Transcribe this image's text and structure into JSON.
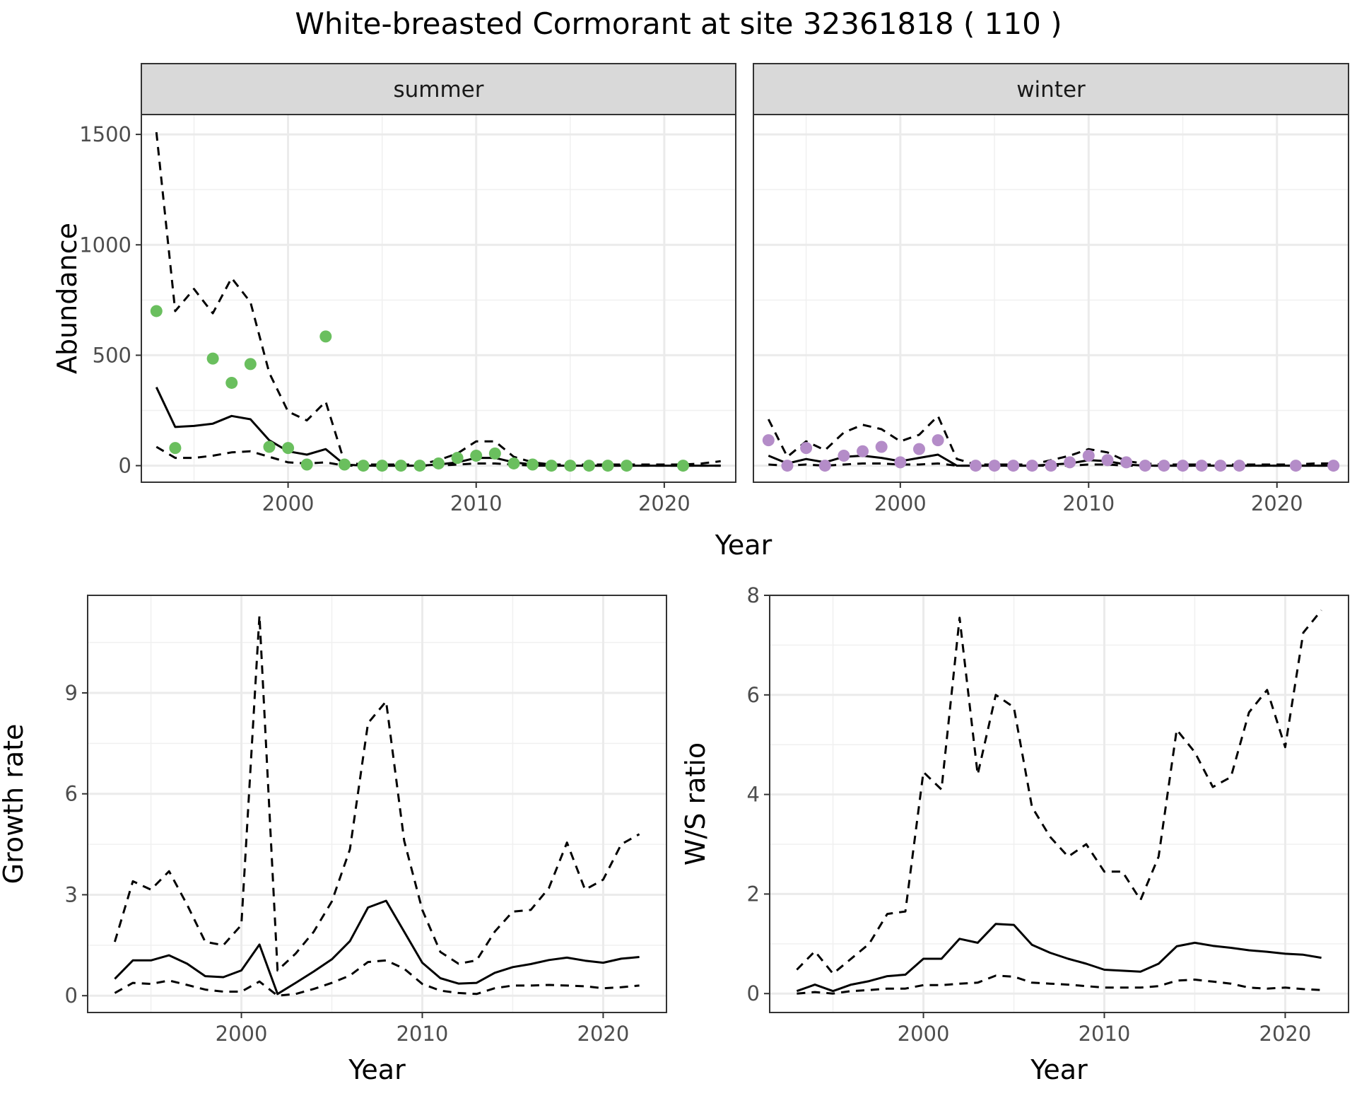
{
  "title": "White-breasted Cormorant at site 32361818 ( 110 )",
  "colors": {
    "summer": "#6abf5e",
    "winter": "#b48cc8",
    "line": "#000000",
    "strip": "#d9d9d9"
  },
  "chart_data": [
    {
      "type": "line",
      "facet": "summer",
      "xlabel": "Year",
      "ylabel": "Abundance",
      "xlim": [
        1992.2,
        2023.8
      ],
      "ylim": [
        -75,
        1590
      ],
      "xticks": [
        2000,
        2010,
        2020
      ],
      "yticks": [
        0,
        500,
        1000,
        1500
      ],
      "series": [
        {
          "style": "solid",
          "x": [
            1993,
            1994,
            1995,
            1996,
            1997,
            1998,
            1999,
            2000,
            2001,
            2002,
            2003,
            2004,
            2005,
            2006,
            2007,
            2008,
            2009,
            2010,
            2011,
            2012,
            2013,
            2014,
            2015,
            2016,
            2017,
            2018,
            2019,
            2020,
            2021,
            2022,
            2023
          ],
          "y": [
            355,
            175,
            180,
            190,
            225,
            210,
            115,
            65,
            50,
            75,
            5,
            0,
            0,
            0,
            0,
            5,
            15,
            35,
            35,
            15,
            5,
            0,
            0,
            0,
            0,
            0,
            0,
            0,
            0,
            0,
            0
          ]
        },
        {
          "style": "dashed",
          "x": [
            1993,
            1994,
            1995,
            1996,
            1997,
            1998,
            1999,
            2000,
            2001,
            2002,
            2003,
            2004,
            2005,
            2006,
            2007,
            2008,
            2009,
            2010,
            2011,
            2012,
            2013,
            2014,
            2015,
            2016,
            2017,
            2018,
            2019,
            2020,
            2021,
            2022,
            2023
          ],
          "y": [
            1510,
            700,
            800,
            690,
            850,
            740,
            420,
            245,
            205,
            290,
            15,
            5,
            5,
            5,
            5,
            25,
            55,
            110,
            110,
            40,
            15,
            5,
            5,
            5,
            5,
            5,
            5,
            5,
            5,
            10,
            20
          ]
        },
        {
          "style": "dashed",
          "x": [
            1993,
            1994,
            1995,
            1996,
            1997,
            1998,
            1999,
            2000,
            2001,
            2002,
            2003,
            2004,
            2005,
            2006,
            2007,
            2008,
            2009,
            2010,
            2011,
            2012,
            2013,
            2014,
            2015,
            2016,
            2017,
            2018,
            2019,
            2020,
            2021,
            2022,
            2023
          ],
          "y": [
            85,
            35,
            35,
            45,
            60,
            65,
            40,
            15,
            10,
            15,
            0,
            0,
            0,
            0,
            0,
            0,
            5,
            10,
            10,
            5,
            0,
            0,
            0,
            0,
            0,
            0,
            0,
            0,
            0,
            0,
            0
          ]
        },
        {
          "style": "points",
          "x": [
            1993,
            1994,
            1996,
            1997,
            1998,
            1999,
            2000,
            2001,
            2002,
            2003,
            2004,
            2005,
            2006,
            2007,
            2008,
            2009,
            2010,
            2011,
            2012,
            2013,
            2014,
            2015,
            2016,
            2017,
            2018,
            2021
          ],
          "y": [
            700,
            80,
            485,
            375,
            460,
            85,
            80,
            5,
            585,
            5,
            0,
            0,
            0,
            0,
            10,
            35,
            45,
            55,
            10,
            5,
            0,
            0,
            0,
            0,
            0,
            0
          ]
        }
      ]
    },
    {
      "type": "line",
      "facet": "winter",
      "xlabel": "Year",
      "ylabel": "Abundance",
      "xlim": [
        1992.2,
        2023.8
      ],
      "ylim": [
        -75,
        1590
      ],
      "xticks": [
        2000,
        2010,
        2020
      ],
      "yticks": [
        0,
        500,
        1000,
        1500
      ],
      "series": [
        {
          "style": "solid",
          "x": [
            1993,
            1994,
            1995,
            1996,
            1997,
            1998,
            1999,
            2000,
            2001,
            2002,
            2003,
            2004,
            2005,
            2006,
            2007,
            2008,
            2009,
            2010,
            2011,
            2012,
            2013,
            2014,
            2015,
            2016,
            2017,
            2018,
            2019,
            2020,
            2021,
            2022,
            2023
          ],
          "y": [
            45,
            10,
            30,
            15,
            40,
            45,
            35,
            20,
            35,
            50,
            0,
            0,
            0,
            0,
            0,
            5,
            10,
            25,
            20,
            5,
            0,
            0,
            0,
            0,
            0,
            0,
            0,
            0,
            0,
            0,
            0
          ]
        },
        {
          "style": "dashed",
          "x": [
            1993,
            1994,
            1995,
            1996,
            1997,
            1998,
            1999,
            2000,
            2001,
            2002,
            2003,
            2004,
            2005,
            2006,
            2007,
            2008,
            2009,
            2010,
            2011,
            2012,
            2013,
            2014,
            2015,
            2016,
            2017,
            2018,
            2019,
            2020,
            2021,
            2022,
            2023
          ],
          "y": [
            210,
            40,
            110,
            70,
            150,
            185,
            165,
            110,
            140,
            225,
            30,
            5,
            5,
            5,
            5,
            25,
            45,
            75,
            60,
            20,
            10,
            5,
            5,
            5,
            5,
            5,
            5,
            5,
            5,
            10,
            10
          ]
        },
        {
          "style": "dashed",
          "x": [
            1993,
            1994,
            1995,
            1996,
            1997,
            1998,
            1999,
            2000,
            2001,
            2002,
            2003,
            2004,
            2005,
            2006,
            2007,
            2008,
            2009,
            2010,
            2011,
            2012,
            2013,
            2014,
            2015,
            2016,
            2017,
            2018,
            2019,
            2020,
            2021,
            2022,
            2023
          ],
          "y": [
            5,
            0,
            5,
            0,
            5,
            10,
            10,
            5,
            5,
            10,
            0,
            0,
            0,
            0,
            0,
            0,
            0,
            5,
            5,
            0,
            0,
            0,
            0,
            0,
            0,
            0,
            0,
            0,
            0,
            0,
            0
          ]
        },
        {
          "style": "points",
          "x": [
            1993,
            1994,
            1995,
            1996,
            1997,
            1998,
            1999,
            2000,
            2001,
            2002,
            2004,
            2005,
            2006,
            2007,
            2008,
            2009,
            2010,
            2011,
            2012,
            2013,
            2014,
            2015,
            2016,
            2017,
            2018,
            2021,
            2023
          ],
          "y": [
            115,
            0,
            80,
            0,
            45,
            65,
            85,
            15,
            75,
            115,
            0,
            0,
            0,
            0,
            0,
            15,
            45,
            25,
            15,
            0,
            0,
            0,
            0,
            0,
            0,
            0,
            0
          ]
        }
      ]
    },
    {
      "type": "line",
      "xlabel": "Year",
      "ylabel": "Growth rate",
      "xlim": [
        1991.5,
        2023.5
      ],
      "ylim": [
        -0.5,
        11.9
      ],
      "xticks": [
        2000,
        2010,
        2020
      ],
      "yticks": [
        0,
        3,
        6,
        9
      ],
      "series": [
        {
          "style": "solid",
          "x": [
            1993,
            1994,
            1995,
            1996,
            1997,
            1998,
            1999,
            2000,
            2001,
            2002,
            2003,
            2004,
            2005,
            2006,
            2007,
            2008,
            2009,
            2010,
            2011,
            2012,
            2013,
            2014,
            2015,
            2016,
            2017,
            2018,
            2019,
            2020,
            2021,
            2022
          ],
          "y": [
            0.5,
            1.05,
            1.05,
            1.2,
            0.95,
            0.58,
            0.55,
            0.75,
            1.52,
            0.05,
            0.38,
            0.72,
            1.08,
            1.62,
            2.62,
            2.82,
            1.9,
            0.98,
            0.52,
            0.36,
            0.38,
            0.68,
            0.85,
            0.94,
            1.06,
            1.13,
            1.04,
            0.98,
            1.1,
            1.15
          ]
        },
        {
          "style": "dashed",
          "x": [
            1993,
            1994,
            1995,
            1996,
            1997,
            1998,
            1999,
            2000,
            2001,
            2002,
            2003,
            2004,
            2005,
            2006,
            2007,
            2008,
            2009,
            2010,
            2011,
            2012,
            2013,
            2014,
            2015,
            2016,
            2017,
            2018,
            2019,
            2020,
            2021,
            2022
          ],
          "y": [
            1.6,
            3.4,
            3.15,
            3.7,
            2.7,
            1.6,
            1.5,
            2.1,
            11.3,
            0.75,
            1.25,
            1.9,
            2.8,
            4.35,
            8.1,
            8.75,
            4.6,
            2.55,
            1.3,
            0.95,
            1.05,
            1.9,
            2.5,
            2.55,
            3.2,
            4.55,
            3.15,
            3.45,
            4.5,
            4.8
          ]
        },
        {
          "style": "dashed",
          "x": [
            1993,
            1994,
            1995,
            1996,
            1997,
            1998,
            1999,
            2000,
            2001,
            2002,
            2003,
            2004,
            2005,
            2006,
            2007,
            2008,
            2009,
            2010,
            2011,
            2012,
            2013,
            2014,
            2015,
            2016,
            2017,
            2018,
            2019,
            2020,
            2021,
            2022
          ],
          "y": [
            0.08,
            0.38,
            0.35,
            0.45,
            0.32,
            0.18,
            0.12,
            0.12,
            0.42,
            0.0,
            0.05,
            0.2,
            0.38,
            0.6,
            1.0,
            1.05,
            0.8,
            0.35,
            0.15,
            0.08,
            0.05,
            0.22,
            0.3,
            0.3,
            0.32,
            0.3,
            0.28,
            0.22,
            0.25,
            0.3
          ]
        }
      ]
    },
    {
      "type": "line",
      "xlabel": "Year",
      "ylabel": "W/S ratio",
      "xlim": [
        1991.5,
        2023.5
      ],
      "ylim": [
        -0.38,
        8.0
      ],
      "xticks": [
        2000,
        2010,
        2020
      ],
      "yticks": [
        0,
        2,
        4,
        6,
        8
      ],
      "series": [
        {
          "style": "solid",
          "x": [
            1993,
            1994,
            1995,
            1996,
            1997,
            1998,
            1999,
            2000,
            2001,
            2002,
            2003,
            2004,
            2005,
            2006,
            2007,
            2008,
            2009,
            2010,
            2011,
            2012,
            2013,
            2014,
            2015,
            2016,
            2017,
            2018,
            2019,
            2020,
            2021,
            2022
          ],
          "y": [
            0.05,
            0.18,
            0.05,
            0.18,
            0.25,
            0.35,
            0.38,
            0.7,
            0.7,
            1.1,
            1.02,
            1.4,
            1.38,
            0.98,
            0.82,
            0.7,
            0.6,
            0.48,
            0.46,
            0.44,
            0.6,
            0.95,
            1.02,
            0.96,
            0.92,
            0.87,
            0.84,
            0.8,
            0.78,
            0.72
          ]
        },
        {
          "style": "dashed",
          "x": [
            1993,
            1994,
            1995,
            1996,
            1997,
            1998,
            1999,
            2000,
            2001,
            2002,
            2003,
            2004,
            2005,
            2006,
            2007,
            2008,
            2009,
            2010,
            2011,
            2012,
            2013,
            2014,
            2015,
            2016,
            2017,
            2018,
            2019,
            2020,
            2021,
            2022
          ],
          "y": [
            0.48,
            0.85,
            0.4,
            0.7,
            1.0,
            1.6,
            1.65,
            4.45,
            4.1,
            7.55,
            4.4,
            6.0,
            5.75,
            3.75,
            3.15,
            2.75,
            3.0,
            2.45,
            2.45,
            1.88,
            2.75,
            5.3,
            4.85,
            4.15,
            4.35,
            5.65,
            6.1,
            4.95,
            7.25,
            7.7
          ]
        },
        {
          "style": "dashed",
          "x": [
            1993,
            1994,
            1995,
            1996,
            1997,
            1998,
            1999,
            2000,
            2001,
            2002,
            2003,
            2004,
            2005,
            2006,
            2007,
            2008,
            2009,
            2010,
            2011,
            2012,
            2013,
            2014,
            2015,
            2016,
            2017,
            2018,
            2019,
            2020,
            2021,
            2022
          ],
          "y": [
            0.0,
            0.03,
            0.0,
            0.05,
            0.07,
            0.1,
            0.1,
            0.17,
            0.17,
            0.2,
            0.22,
            0.36,
            0.34,
            0.22,
            0.2,
            0.18,
            0.15,
            0.12,
            0.12,
            0.12,
            0.15,
            0.26,
            0.28,
            0.24,
            0.2,
            0.12,
            0.1,
            0.12,
            0.09,
            0.07
          ]
        }
      ]
    }
  ]
}
